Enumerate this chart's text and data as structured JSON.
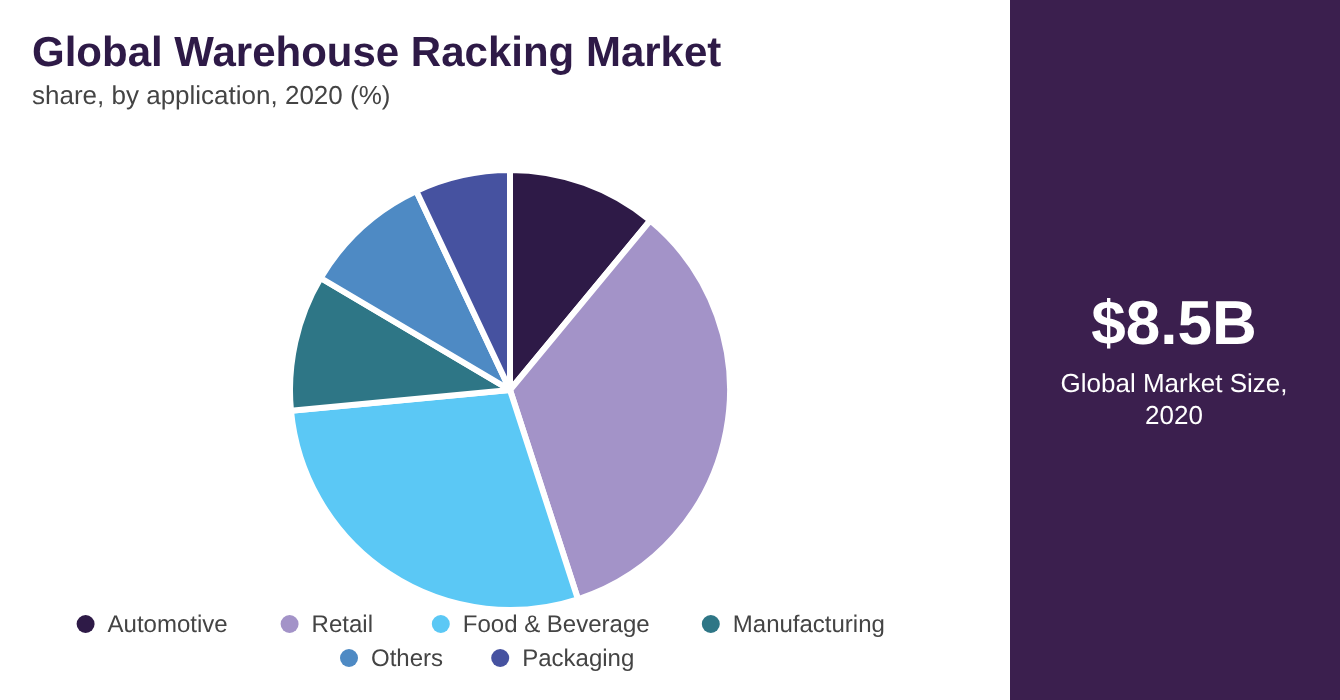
{
  "chart_data": {
    "type": "pie",
    "title": "Global Warehouse Racking Market",
    "subtitle": "share, by application, 2020 (%)",
    "categories": [
      "Automotive",
      "Retail",
      "Food & Beverage",
      "Manufacturing",
      "Others",
      "Packaging"
    ],
    "values": [
      11,
      34,
      28.5,
      10,
      9.5,
      7
    ],
    "colors": [
      "#2e1a47",
      "#a393c8",
      "#5bc8f5",
      "#2e7686",
      "#4e8ac4",
      "#4652a0"
    ],
    "legend": "bottom",
    "annotations": [
      "$8.5B",
      "Global Market Size, 2020"
    ]
  }
}
